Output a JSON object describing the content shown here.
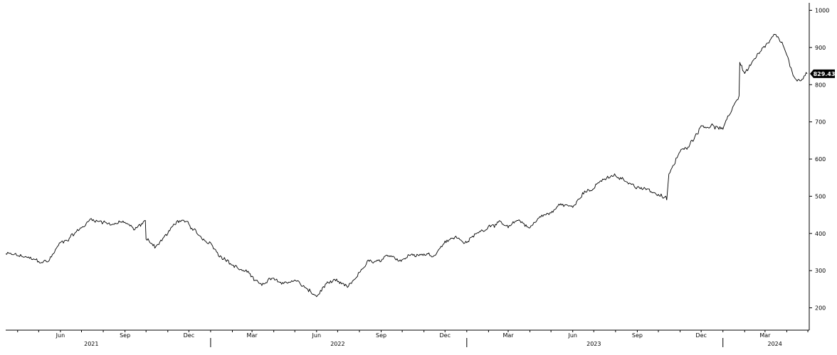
{
  "chart_data": {
    "type": "line",
    "title": "",
    "xlabel": "",
    "ylabel": "",
    "ylim": [
      140,
      1020
    ],
    "y_ticks": [
      200,
      300,
      400,
      500,
      600,
      700,
      800,
      900,
      1000
    ],
    "y_tick_labels": [
      "200",
      "300",
      "400",
      "500",
      "600",
      "700",
      "800",
      "900",
      "1000"
    ],
    "x_range": [
      "2021-03-15",
      "2024-05-03"
    ],
    "month_labels": [
      {
        "date": "2021-06-01",
        "label": "Jun"
      },
      {
        "date": "2021-09-01",
        "label": "Sep"
      },
      {
        "date": "2021-12-01",
        "label": "Dec"
      },
      {
        "date": "2022-03-01",
        "label": "Mar"
      },
      {
        "date": "2022-06-01",
        "label": "Jun"
      },
      {
        "date": "2022-09-01",
        "label": "Sep"
      },
      {
        "date": "2022-12-01",
        "label": "Dec"
      },
      {
        "date": "2023-03-01",
        "label": "Mar"
      },
      {
        "date": "2023-06-01",
        "label": "Jun"
      },
      {
        "date": "2023-09-01",
        "label": "Sep"
      },
      {
        "date": "2023-12-01",
        "label": "Dec"
      },
      {
        "date": "2024-03-01",
        "label": "Mar"
      }
    ],
    "year_labels": [
      {
        "date": "2021-07-15",
        "label": "2021"
      },
      {
        "date": "2022-07-01",
        "label": "2022"
      },
      {
        "date": "2023-07-01",
        "label": "2023"
      },
      {
        "date": "2024-03-15",
        "label": "2024"
      }
    ],
    "year_separators": [
      "2022-01-01",
      "2023-01-01",
      "2024-01-01"
    ],
    "last_price_label": "829.43",
    "series": [
      {
        "x": [
          "2021-03-15",
          "2021-04-01",
          "2021-04-15",
          "2021-05-01",
          "2021-05-15",
          "2021-06-01",
          "2021-06-15",
          "2021-07-01",
          "2021-07-15",
          "2021-08-01",
          "2021-08-15",
          "2021-09-01",
          "2021-09-15",
          "2021-09-30",
          "2021-10-01",
          "2021-10-15",
          "2021-11-01",
          "2021-11-15",
          "2021-12-01",
          "2021-12-15",
          "2022-01-01",
          "2022-01-15",
          "2022-02-01",
          "2022-02-15",
          "2022-03-01",
          "2022-03-15",
          "2022-04-01",
          "2022-04-15",
          "2022-05-01",
          "2022-05-15",
          "2022-06-01",
          "2022-06-15",
          "2022-07-01",
          "2022-07-15",
          "2022-08-01",
          "2022-08-15",
          "2022-09-01",
          "2022-09-15",
          "2022-10-01",
          "2022-10-15",
          "2022-11-01",
          "2022-11-15",
          "2022-12-01",
          "2022-12-15",
          "2023-01-01",
          "2023-01-15",
          "2023-02-01",
          "2023-02-15",
          "2023-03-01",
          "2023-03-15",
          "2023-04-01",
          "2023-04-15",
          "2023-05-01",
          "2023-05-15",
          "2023-06-01",
          "2023-06-15",
          "2023-07-01",
          "2023-07-15",
          "2023-08-01",
          "2023-08-15",
          "2023-09-01",
          "2023-09-15",
          "2023-10-01",
          "2023-10-13",
          "2023-10-16",
          "2023-11-01",
          "2023-11-15",
          "2023-12-01",
          "2023-12-15",
          "2024-01-01",
          "2024-01-15",
          "2024-01-24",
          "2024-01-25",
          "2024-02-01",
          "2024-02-15",
          "2024-03-01",
          "2024-03-15",
          "2024-03-28",
          "2024-04-01",
          "2024-04-10",
          "2024-04-20",
          "2024-04-30"
        ],
        "y": [
          345,
          340,
          335,
          325,
          325,
          375,
          390,
          415,
          440,
          430,
          425,
          430,
          410,
          435,
          385,
          365,
          400,
          435,
          425,
          395,
          375,
          340,
          315,
          300,
          285,
          260,
          280,
          265,
          275,
          255,
          230,
          265,
          270,
          255,
          295,
          325,
          325,
          340,
          330,
          345,
          345,
          340,
          380,
          390,
          375,
          400,
          420,
          430,
          415,
          435,
          415,
          445,
          455,
          480,
          470,
          510,
          520,
          545,
          555,
          540,
          525,
          520,
          505,
          490,
          560,
          620,
          640,
          690,
          690,
          680,
          740,
          770,
          860,
          830,
          870,
          900,
          935,
          900,
          880,
          825,
          810,
          829.43
        ]
      }
    ]
  }
}
